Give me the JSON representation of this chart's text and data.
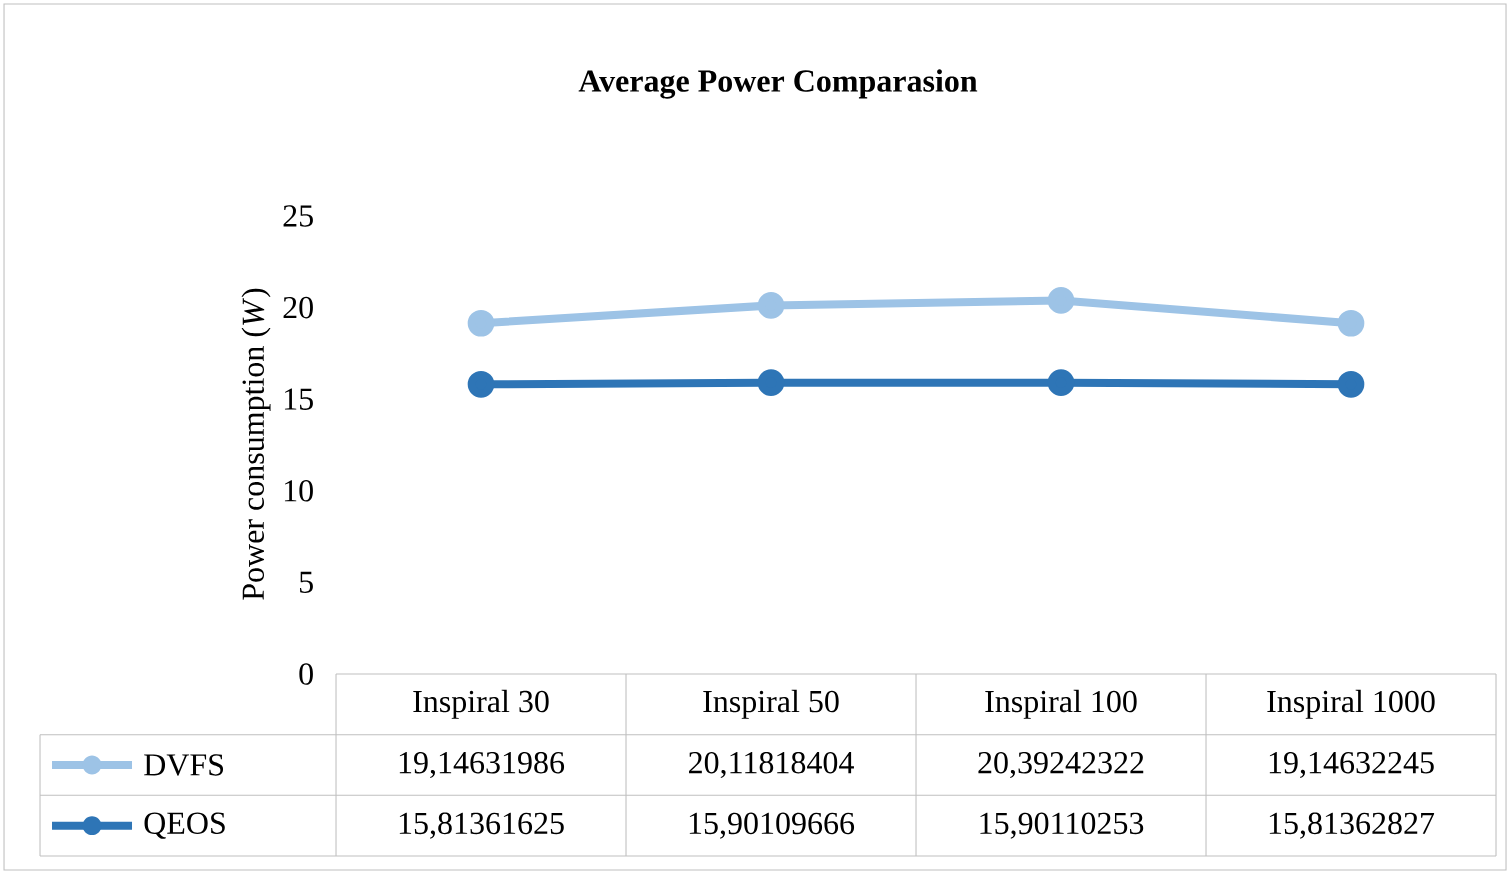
{
  "chart_data": {
    "type": "line",
    "title": "Average  Power Comparasion",
    "ylabel": "Power consumption (*W*)",
    "categories": [
      "Inspiral 30",
      "Inspiral 50",
      "Inspiral 100",
      "Inspiral 1000"
    ],
    "series": [
      {
        "name": "DVFS",
        "color": "#9dc3e6",
        "values": [
          19.14631986,
          20.11818404,
          20.39242322,
          19.14632245
        ],
        "value_labels": [
          "19,14631986",
          "20,11818404",
          "20,39242322",
          "19,14632245"
        ]
      },
      {
        "name": "QEOS",
        "color": "#2e75b6",
        "values": [
          15.81361625,
          15.90109666,
          15.90110253,
          15.81362827
        ],
        "value_labels": [
          "15,81361625",
          "15,90109666",
          "15,90110253",
          "15,81362827"
        ]
      }
    ],
    "ylim": [
      0,
      25
    ],
    "yticks": [
      0,
      5,
      10,
      15,
      20,
      25
    ],
    "marker": "circle",
    "line_style": "solid",
    "legend": "bottom"
  }
}
